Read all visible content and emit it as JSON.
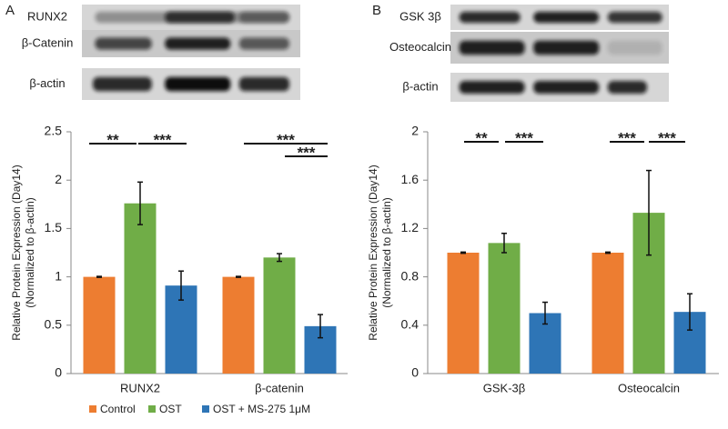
{
  "chart_data": [
    {
      "type": "bar",
      "panel": "A",
      "blot_labels": [
        "RUNX2",
        "β-Catenin",
        "β-actin"
      ],
      "ylabel": [
        "Relative Protein Expression (Day14)",
        "(Normalized to β-actin)"
      ],
      "categories": [
        "RUNX2",
        "β-catenin"
      ],
      "series": [
        {
          "name": "Control",
          "color": "#ed7d31",
          "values": [
            1,
            1
          ],
          "errors": [
            0.005,
            0.005
          ]
        },
        {
          "name": "OST",
          "color": "#70ad47",
          "values": [
            1.76,
            1.2
          ],
          "errors": [
            0.22,
            0.04
          ]
        },
        {
          "name": "OST + MS-275 1μM",
          "color": "#2e75b6",
          "values": [
            0.91,
            0.49
          ],
          "errors": [
            0.15,
            0.12
          ]
        }
      ],
      "annotations": [
        "**",
        "***",
        "***",
        "***"
      ],
      "ylim": [
        0,
        2.5
      ],
      "yticks": [
        0,
        0.5,
        1,
        1.5,
        2,
        2.5
      ],
      "legend": "bottom"
    },
    {
      "type": "bar",
      "panel": "B",
      "blot_labels": [
        "GSK 3β",
        "Osteocalcin",
        "β-actin"
      ],
      "ylabel": [
        "Relative Protein Expression (Day14)",
        "(Normalized to β-actin)"
      ],
      "categories": [
        "GSK-3β",
        "Osteocalcin"
      ],
      "series": [
        {
          "color": "#ed7d31",
          "values": [
            1,
            1
          ],
          "errors": [
            0.005,
            0.005
          ]
        },
        {
          "color": "#70ad47",
          "values": [
            1.08,
            1.33
          ],
          "errors": [
            0.08,
            0.35
          ]
        },
        {
          "color": "#2e75b6",
          "values": [
            0.5,
            0.51
          ],
          "errors": [
            0.09,
            0.15
          ]
        }
      ],
      "annotations": [
        "**",
        "***",
        "***",
        "***"
      ],
      "ylim": [
        0,
        2
      ],
      "yticks": [
        0,
        0.4,
        0.8,
        1.2,
        1.6,
        2
      ]
    }
  ]
}
